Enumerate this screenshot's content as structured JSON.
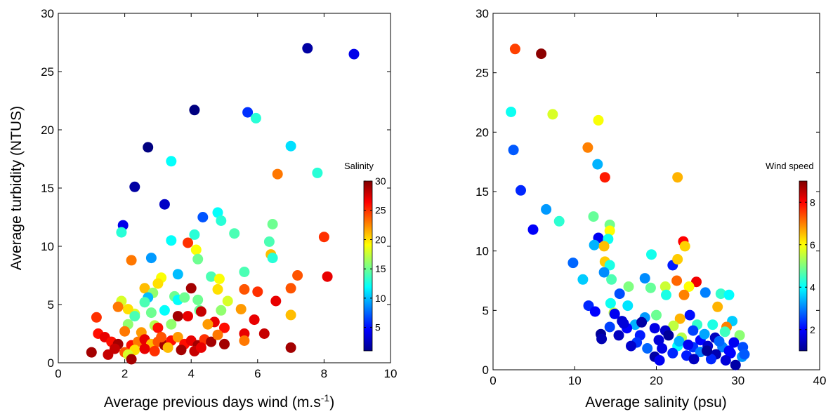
{
  "chart_data": [
    {
      "type": "scatter",
      "xlabel_main": "Average previous days wind (m.s",
      "xlabel_sup": "-1",
      "xlabel_tail": ")",
      "ylabel": "Average turbidity (NTUS)",
      "xlim": [
        0,
        10
      ],
      "ylim": [
        0,
        30
      ],
      "xticks": [
        "0",
        "2",
        "4",
        "6",
        "8",
        "10"
      ],
      "yticks": [
        "0",
        "5",
        "10",
        "15",
        "20",
        "25",
        "30"
      ],
      "colorbar": {
        "title": "Salinity",
        "range": [
          1,
          30
        ],
        "ticks": [
          "5",
          "10",
          "15",
          "20",
          "25",
          "30"
        ]
      },
      "points": [
        [
          7.5,
          27.0,
          2
        ],
        [
          8.9,
          26.5,
          4
        ],
        [
          4.1,
          21.7,
          1
        ],
        [
          5.7,
          21.5,
          6
        ],
        [
          5.95,
          21.0,
          13
        ],
        [
          2.7,
          18.5,
          1
        ],
        [
          7.0,
          18.6,
          11
        ],
        [
          7.8,
          16.3,
          13
        ],
        [
          6.6,
          16.2,
          23
        ],
        [
          3.4,
          17.3,
          12
        ],
        [
          2.3,
          15.1,
          2
        ],
        [
          3.2,
          13.6,
          3
        ],
        [
          1.95,
          11.8,
          4
        ],
        [
          1.9,
          11.2,
          13
        ],
        [
          4.8,
          12.9,
          12
        ],
        [
          4.9,
          12.2,
          13
        ],
        [
          4.35,
          12.5,
          7
        ],
        [
          6.45,
          11.9,
          15
        ],
        [
          5.3,
          11.1,
          14
        ],
        [
          4.1,
          11.0,
          13
        ],
        [
          8.0,
          10.8,
          25
        ],
        [
          6.35,
          10.4,
          14
        ],
        [
          3.4,
          10.5,
          12
        ],
        [
          3.9,
          10.3,
          25
        ],
        [
          4.15,
          9.7,
          19
        ],
        [
          6.4,
          9.3,
          21
        ],
        [
          6.45,
          9.0,
          13
        ],
        [
          2.2,
          8.8,
          23
        ],
        [
          2.8,
          9.0,
          9
        ],
        [
          4.2,
          8.9,
          15
        ],
        [
          8.1,
          7.4,
          27
        ],
        [
          7.2,
          7.5,
          24
        ],
        [
          5.6,
          7.8,
          14
        ],
        [
          4.6,
          7.4,
          14
        ],
        [
          4.85,
          7.2,
          19
        ],
        [
          3.6,
          7.6,
          10
        ],
        [
          3.1,
          7.3,
          19
        ],
        [
          3.0,
          6.8,
          20
        ],
        [
          2.6,
          6.4,
          21
        ],
        [
          2.85,
          6.0,
          16
        ],
        [
          4.0,
          6.4,
          29
        ],
        [
          4.8,
          6.3,
          20
        ],
        [
          7.0,
          6.4,
          24
        ],
        [
          6.0,
          6.1,
          25
        ],
        [
          5.6,
          6.3,
          24
        ],
        [
          3.5,
          5.7,
          15
        ],
        [
          3.6,
          5.4,
          12
        ],
        [
          2.7,
          5.6,
          10
        ],
        [
          2.6,
          5.2,
          14
        ],
        [
          3.8,
          5.6,
          15
        ],
        [
          4.2,
          5.4,
          15
        ],
        [
          5.1,
          5.3,
          18
        ],
        [
          1.9,
          5.3,
          18
        ],
        [
          6.55,
          5.3,
          27
        ],
        [
          5.5,
          4.6,
          22
        ],
        [
          4.9,
          4.5,
          16
        ],
        [
          4.25,
          4.5,
          15
        ],
        [
          3.2,
          4.5,
          12
        ],
        [
          2.3,
          4.2,
          18
        ],
        [
          2.1,
          4.6,
          20
        ],
        [
          1.8,
          4.8,
          23
        ],
        [
          1.15,
          3.9,
          25
        ],
        [
          4.3,
          4.4,
          28
        ],
        [
          7.0,
          4.1,
          21
        ],
        [
          2.3,
          4.0,
          14
        ],
        [
          2.8,
          4.3,
          15
        ],
        [
          3.6,
          4.0,
          29
        ],
        [
          3.9,
          4.0,
          27
        ],
        [
          4.7,
          3.5,
          27
        ],
        [
          5.9,
          3.7,
          27
        ],
        [
          6.2,
          2.5,
          28
        ],
        [
          5.6,
          2.5,
          27
        ],
        [
          4.5,
          3.3,
          22
        ],
        [
          3.4,
          3.3,
          16
        ],
        [
          2.9,
          3.2,
          17
        ],
        [
          2.1,
          3.3,
          16
        ],
        [
          3.0,
          3.0,
          26
        ],
        [
          5.0,
          3.0,
          26
        ],
        [
          2.0,
          2.7,
          23
        ],
        [
          2.5,
          2.6,
          22
        ],
        [
          1.2,
          2.5,
          26
        ],
        [
          1.4,
          2.2,
          27
        ],
        [
          1.6,
          1.8,
          26
        ],
        [
          1.8,
          1.6,
          29
        ],
        [
          2.2,
          1.5,
          26
        ],
        [
          2.4,
          1.8,
          23
        ],
        [
          2.6,
          2.0,
          27
        ],
        [
          2.8,
          1.6,
          21
        ],
        [
          3.0,
          1.8,
          24
        ],
        [
          3.2,
          1.5,
          29
        ],
        [
          3.4,
          1.9,
          26
        ],
        [
          3.6,
          2.2,
          22
        ],
        [
          3.8,
          1.6,
          26
        ],
        [
          4.0,
          1.9,
          27
        ],
        [
          4.2,
          1.5,
          29
        ],
        [
          4.4,
          2.0,
          25
        ],
        [
          4.6,
          1.8,
          29
        ],
        [
          4.8,
          2.4,
          23
        ],
        [
          5.0,
          1.6,
          29
        ],
        [
          5.6,
          1.9,
          23
        ],
        [
          7.0,
          1.3,
          29
        ],
        [
          1.0,
          0.9,
          29
        ],
        [
          1.5,
          0.7,
          28
        ],
        [
          2.0,
          0.9,
          24
        ],
        [
          2.3,
          1.1,
          20
        ],
        [
          2.6,
          1.2,
          27
        ],
        [
          2.9,
          1.0,
          25
        ],
        [
          3.3,
          1.3,
          21
        ],
        [
          3.7,
          1.1,
          29
        ],
        [
          4.1,
          1.0,
          28
        ],
        [
          4.3,
          1.3,
          27
        ],
        [
          2.1,
          0.7,
          18
        ],
        [
          3.1,
          2.2,
          24
        ],
        [
          2.2,
          0.3,
          29
        ],
        [
          1.7,
          1.2,
          28
        ]
      ]
    },
    {
      "type": "scatter",
      "xlabel": "Average salinity (psu)",
      "ylabel": "",
      "xlim": [
        0,
        40
      ],
      "ylim": [
        0,
        30
      ],
      "xticks": [
        "0",
        "10",
        "20",
        "30",
        "40"
      ],
      "yticks": [
        "0",
        "5",
        "10",
        "15",
        "20",
        "25",
        "30"
      ],
      "colorbar": {
        "title": "Wind speed",
        "range": [
          1,
          9
        ],
        "ticks": [
          "2",
          "4",
          "6",
          "8"
        ]
      },
      "points": [
        [
          2.7,
          27.0,
          7.5
        ],
        [
          5.9,
          26.6,
          8.9
        ],
        [
          2.2,
          21.7,
          4.1
        ],
        [
          7.3,
          21.5,
          5.7
        ],
        [
          12.9,
          21.0,
          5.95
        ],
        [
          11.6,
          18.7,
          7.0
        ],
        [
          2.5,
          18.5,
          2.7
        ],
        [
          13.7,
          16.2,
          7.8
        ],
        [
          12.8,
          17.3,
          3.4
        ],
        [
          22.6,
          16.2,
          6.6
        ],
        [
          3.4,
          15.1,
          2.3
        ],
        [
          6.5,
          13.5,
          3.2
        ],
        [
          4.9,
          11.8,
          1.95
        ],
        [
          8.1,
          12.5,
          4.35
        ],
        [
          12.3,
          12.9,
          4.8
        ],
        [
          14.3,
          12.2,
          4.9
        ],
        [
          14.3,
          11.7,
          6.0
        ],
        [
          12.9,
          11.1,
          1.9
        ],
        [
          14.1,
          11.0,
          4.1
        ],
        [
          23.3,
          10.8,
          8.0
        ],
        [
          23.5,
          10.4,
          6.35
        ],
        [
          12.4,
          10.5,
          3.4
        ],
        [
          13.6,
          10.4,
          6.5
        ],
        [
          22.0,
          8.8,
          2.2
        ],
        [
          9.8,
          9.0,
          2.8
        ],
        [
          13.7,
          9.1,
          6.4
        ],
        [
          14.3,
          8.8,
          4.2
        ],
        [
          19.4,
          9.7,
          4.15
        ],
        [
          22.6,
          9.3,
          6.4
        ],
        [
          11.0,
          7.6,
          3.6
        ],
        [
          14.5,
          7.6,
          4.6
        ],
        [
          13.6,
          8.2,
          3.1
        ],
        [
          16.6,
          7.0,
          5.0
        ],
        [
          18.6,
          7.7,
          3.1
        ],
        [
          21.1,
          7.0,
          5.6
        ],
        [
          22.5,
          7.5,
          7.2
        ],
        [
          24.9,
          7.4,
          8.1
        ],
        [
          24.0,
          7.0,
          6.0
        ],
        [
          19.3,
          6.9,
          4.8
        ],
        [
          27.9,
          6.4,
          4.4
        ],
        [
          28.9,
          6.3,
          4.0
        ],
        [
          26.0,
          6.5,
          3.0
        ],
        [
          23.4,
          6.3,
          7.0
        ],
        [
          21.2,
          6.3,
          4.2
        ],
        [
          15.5,
          6.4,
          2.6
        ],
        [
          16.5,
          5.4,
          3.8
        ],
        [
          14.4,
          5.6,
          4.1
        ],
        [
          11.7,
          5.4,
          2.3
        ],
        [
          12.5,
          4.9,
          2.0
        ],
        [
          14.8,
          4.8,
          5.5
        ],
        [
          20.0,
          4.6,
          4.85
        ],
        [
          27.5,
          5.3,
          6.6
        ],
        [
          24.1,
          4.6,
          2.1
        ],
        [
          22.9,
          4.3,
          6.6
        ],
        [
          15.8,
          4.1,
          1.6
        ],
        [
          18.6,
          4.4,
          3.2
        ],
        [
          17.4,
          3.8,
          3.4
        ],
        [
          14.3,
          3.6,
          2.5
        ],
        [
          13.2,
          3.0,
          1.2
        ],
        [
          16.4,
          3.5,
          2.0
        ],
        [
          19.8,
          3.5,
          1.8
        ],
        [
          22.1,
          3.7,
          5.5
        ],
        [
          25.0,
          3.8,
          4.4
        ],
        [
          26.9,
          3.8,
          4.2
        ],
        [
          29.3,
          4.1,
          3.6
        ],
        [
          28.6,
          3.6,
          7.0
        ],
        [
          30.2,
          2.9,
          5.1
        ],
        [
          28.4,
          3.2,
          4.5
        ],
        [
          24.5,
          3.3,
          2.5
        ],
        [
          21.1,
          3.3,
          1.6
        ],
        [
          18.0,
          2.9,
          2.2
        ],
        [
          15.4,
          2.9,
          1.5
        ],
        [
          13.3,
          2.6,
          1.4
        ],
        [
          17.6,
          2.3,
          2.4
        ],
        [
          20.3,
          2.5,
          1.7
        ],
        [
          23.1,
          2.7,
          5.4
        ],
        [
          25.4,
          2.5,
          2.0
        ],
        [
          27.2,
          2.7,
          1.5
        ],
        [
          29.5,
          2.3,
          1.9
        ],
        [
          30.6,
          1.9,
          2.6
        ],
        [
          28.1,
          1.9,
          3.0
        ],
        [
          26.3,
          2.0,
          1.6
        ],
        [
          24.5,
          1.9,
          2.4
        ],
        [
          22.6,
          2.0,
          4.0
        ],
        [
          20.7,
          1.8,
          1.8
        ],
        [
          18.9,
          1.8,
          2.8
        ],
        [
          16.9,
          2.0,
          1.6
        ],
        [
          19.8,
          1.1,
          1.3
        ],
        [
          22.0,
          1.4,
          2.3
        ],
        [
          23.7,
          1.2,
          2.2
        ],
        [
          25.4,
          1.5,
          3.0
        ],
        [
          27.3,
          1.3,
          1.4
        ],
        [
          29.1,
          1.4,
          2.0
        ],
        [
          30.5,
          1.1,
          3.2
        ],
        [
          28.5,
          0.8,
          1.7
        ],
        [
          26.7,
          0.9,
          2.3
        ],
        [
          24.6,
          0.9,
          1.5
        ],
        [
          29.7,
          0.4,
          1.3
        ],
        [
          20.4,
          0.8,
          1.9
        ],
        [
          22.8,
          2.4,
          3.4
        ],
        [
          14.9,
          4.7,
          1.9
        ],
        [
          16.0,
          3.9,
          1.7
        ],
        [
          18.2,
          4.0,
          1.3
        ],
        [
          21.5,
          2.9,
          1.2
        ],
        [
          27.7,
          2.4,
          2.8
        ],
        [
          25.9,
          3.0,
          3.3
        ],
        [
          23.9,
          2.1,
          1.9
        ],
        [
          26.2,
          1.6,
          1.2
        ],
        [
          28.9,
          1.6,
          2.0
        ],
        [
          30.8,
          1.3,
          2.7
        ]
      ]
    }
  ]
}
